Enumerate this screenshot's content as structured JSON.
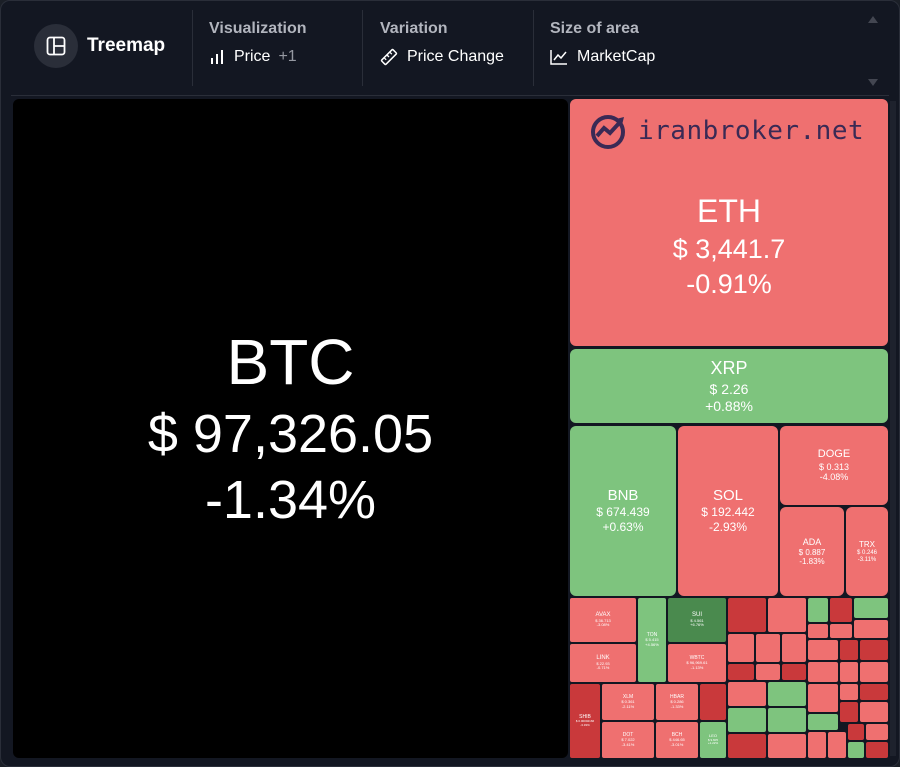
{
  "toolbar": {
    "title": "Treemap",
    "groups": [
      {
        "heading": "Visualization",
        "value": "Price",
        "extra": "+1",
        "icon": "bar-chart-icon"
      },
      {
        "heading": "Variation",
        "value": "Price Change",
        "icon": "ruler-icon"
      },
      {
        "heading": "Size of area",
        "value": "MarketCap",
        "icon": "area-chart-icon"
      }
    ]
  },
  "watermark": {
    "text": "iranbroker.net"
  },
  "colors": {
    "bg": "#131722",
    "negative": "#ef7070",
    "positive": "#7ec47e",
    "strong_negative": "#c9393b",
    "strong_positive": "#4a8a4e"
  },
  "coins": {
    "btc": {
      "sym": "BTC",
      "price": "$ 97,326.05",
      "change": "-1.34%"
    },
    "eth": {
      "sym": "ETH",
      "price": "$ 3,441.7",
      "change": "-0.91%"
    },
    "xrp": {
      "sym": "XRP",
      "price": "$ 2.26",
      "change": "+0.88%"
    },
    "bnb": {
      "sym": "BNB",
      "price": "$ 674.439",
      "change": "+0.63%"
    },
    "sol": {
      "sym": "SOL",
      "price": "$ 192.442",
      "change": "-2.93%"
    },
    "doge": {
      "sym": "DOGE",
      "price": "$ 0.313",
      "change": "-4.08%"
    },
    "ada": {
      "sym": "ADA",
      "price": "$ 0.887",
      "change": "-1.83%"
    },
    "trx": {
      "sym": "TRX",
      "price": "$ 0.246",
      "change": "-3.11%"
    },
    "avax": {
      "sym": "AVAX",
      "price": "$ 36.713",
      "change": "-3.08%"
    },
    "ton": {
      "sym": "TON",
      "price": "$ 5.415",
      "change": "+4.56%"
    },
    "sui": {
      "sym": "SUI",
      "price": "$ 4.561",
      "change": "+6.76%"
    },
    "link": {
      "sym": "LINK",
      "price": "$ 22.93",
      "change": "-0.71%"
    },
    "wbtc": {
      "sym": "WBTC",
      "price": "$ 96,969.61",
      "change": "-1.13%"
    },
    "shib": {
      "sym": "SHIB",
      "price": "$ 0.00002166",
      "change": "-3.33%"
    },
    "xlm": {
      "sym": "XLM",
      "price": "$ 0.361",
      "change": "-2.11%"
    },
    "hbar": {
      "sym": "HBAR",
      "price": "$ 0.286",
      "change": "-1.33%"
    },
    "dot": {
      "sym": "DOT",
      "price": "$ 7.022",
      "change": "-3.41%"
    },
    "bch": {
      "sym": "BCH",
      "price": "$ 446.65",
      "change": "-3.01%"
    },
    "leo": {
      "sym": "LEO",
      "price": "$ 9.605",
      "change": "+1.22%"
    }
  }
}
